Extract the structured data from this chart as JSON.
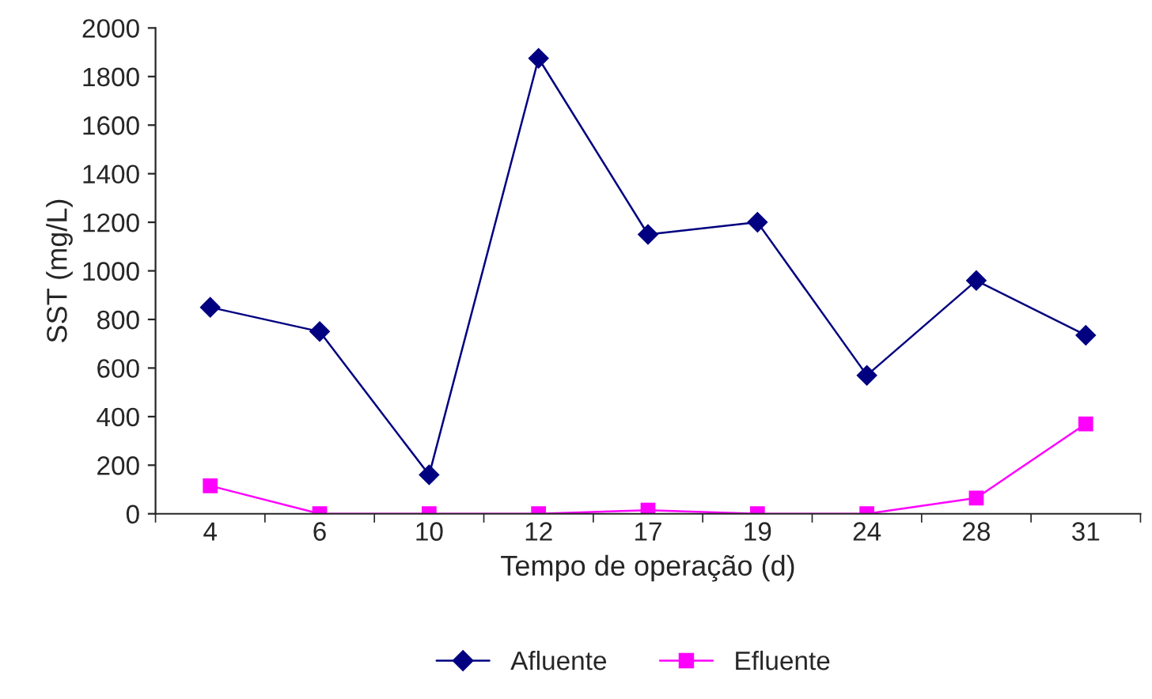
{
  "chart_data": {
    "type": "line",
    "xlabel": "Tempo de operação (d)",
    "ylabel": "SST (mg/L)",
    "categories": [
      "4",
      "6",
      "10",
      "12",
      "17",
      "19",
      "24",
      "28",
      "31"
    ],
    "series": [
      {
        "name": "Afluente",
        "color": "#000080",
        "marker": "diamond",
        "values": [
          850,
          750,
          160,
          1875,
          1150,
          1200,
          570,
          960,
          735
        ]
      },
      {
        "name": "Efluente",
        "color": "#ff00ff",
        "marker": "square",
        "values": [
          115,
          0,
          0,
          0,
          15,
          0,
          0,
          65,
          370
        ]
      }
    ],
    "ylim": [
      0,
      2000
    ],
    "yticks": [
      0,
      200,
      400,
      600,
      800,
      1000,
      1200,
      1400,
      1600,
      1800,
      2000
    ],
    "grid": false,
    "legend": "bottom",
    "line_style": "solid"
  }
}
